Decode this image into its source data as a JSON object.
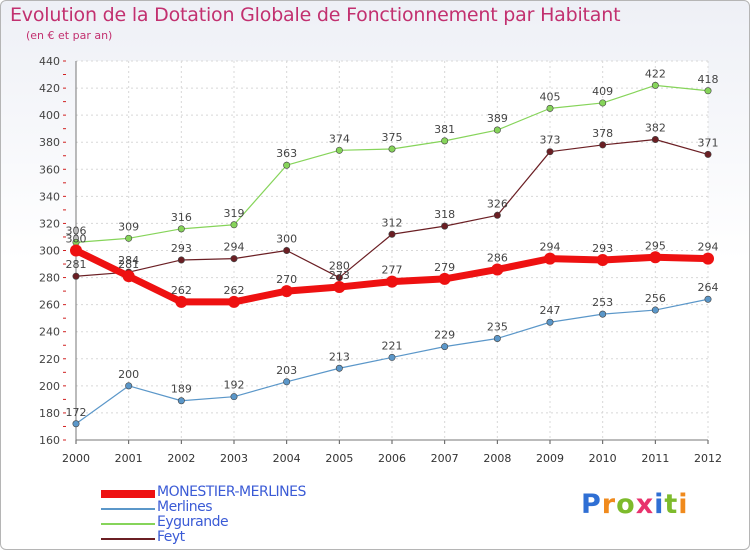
{
  "header": {
    "title": "Evolution de la Dotation Globale de Fonctionnement par Habitant",
    "subtitle": "(en € et par an)"
  },
  "logo": {
    "letters": [
      "P",
      "r",
      "o",
      "x",
      "i",
      "t",
      "i"
    ],
    "colors": [
      "#2f6fd4",
      "#f08a1c",
      "#7dbb2c",
      "#e8336d",
      "#2f6fd4",
      "#7dbb2c",
      "#f08a1c"
    ]
  },
  "chart_data": {
    "type": "line",
    "categories": [
      "2000",
      "2001",
      "2002",
      "2003",
      "2004",
      "2005",
      "2006",
      "2007",
      "2008",
      "2009",
      "2010",
      "2011",
      "2012"
    ],
    "ylim": [
      160,
      440
    ],
    "yticks": [
      "160",
      "180",
      "200",
      "220",
      "240",
      "260",
      "280",
      "300",
      "320",
      "340",
      "360",
      "380",
      "400",
      "420",
      "440"
    ],
    "grid": true,
    "legend_position": "bottom-left",
    "series": [
      {
        "name": "MONESTIER-MERLINES",
        "color": "#ee1111",
        "values": [
          300,
          281,
          262,
          262,
          270,
          273,
          277,
          279,
          286,
          294,
          293,
          295,
          294
        ]
      },
      {
        "name": "Merlines",
        "color": "#5b97c9",
        "values": [
          172,
          200,
          189,
          192,
          203,
          213,
          221,
          229,
          235,
          247,
          253,
          256,
          264
        ]
      },
      {
        "name": "Eygurande",
        "color": "#86d45a",
        "values": [
          306,
          309,
          316,
          319,
          363,
          374,
          375,
          381,
          389,
          405,
          409,
          422,
          418
        ]
      },
      {
        "name": "Feyt",
        "color": "#6b1f24",
        "values": [
          281,
          284,
          293,
          294,
          300,
          280,
          312,
          318,
          326,
          373,
          378,
          382,
          371
        ]
      }
    ]
  }
}
